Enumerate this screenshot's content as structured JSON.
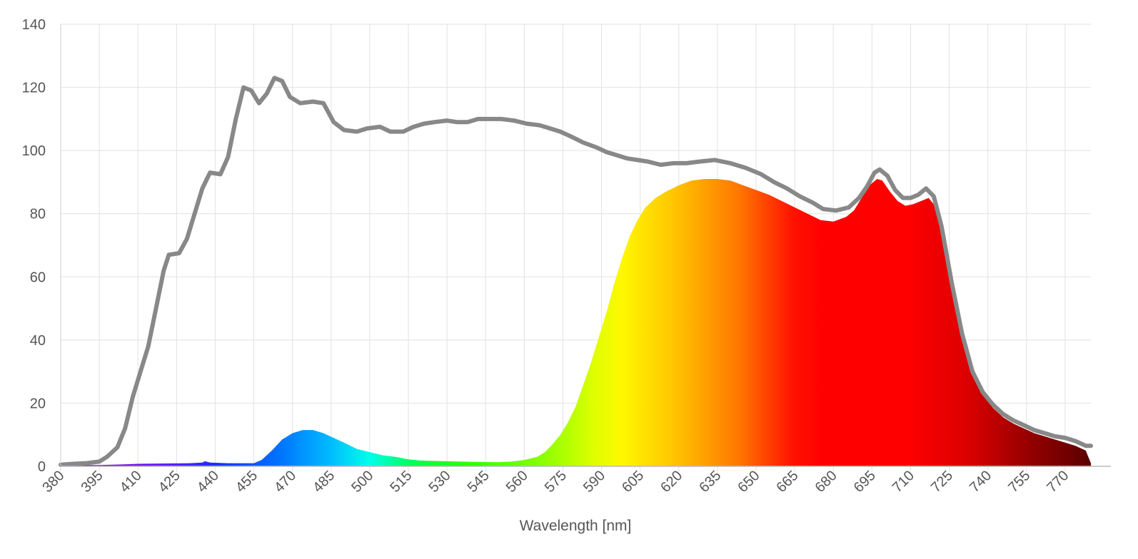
{
  "chart_data": {
    "type": "area",
    "title": "",
    "xlabel": "Wavelength [nm]",
    "ylabel": "",
    "xlim": [
      380,
      780
    ],
    "ylim": [
      0,
      140
    ],
    "grid": true,
    "legend": "none",
    "x_ticks": [
      "380",
      "395",
      "410",
      "425",
      "440",
      "455",
      "470",
      "485",
      "500",
      "515",
      "530",
      "545",
      "560",
      "575",
      "590",
      "605",
      "620",
      "635",
      "650",
      "665",
      "680",
      "695",
      "710",
      "725",
      "740",
      "755",
      "770"
    ],
    "y_ticks": [
      "0",
      "20",
      "40",
      "60",
      "80",
      "100",
      "120",
      "140"
    ],
    "series": [
      {
        "kind": "line",
        "color": "#888888",
        "points": [
          [
            380,
            0.5
          ],
          [
            385,
            0.8
          ],
          [
            390,
            1
          ],
          [
            395,
            1.5
          ],
          [
            398,
            3
          ],
          [
            402,
            6
          ],
          [
            405,
            12
          ],
          [
            408,
            22
          ],
          [
            411,
            30
          ],
          [
            414,
            38
          ],
          [
            417,
            50
          ],
          [
            420,
            62
          ],
          [
            422,
            67
          ],
          [
            426,
            67.5
          ],
          [
            429,
            72
          ],
          [
            432,
            80
          ],
          [
            435,
            88
          ],
          [
            438,
            93
          ],
          [
            442,
            92.5
          ],
          [
            445,
            98
          ],
          [
            448,
            110
          ],
          [
            451,
            120
          ],
          [
            454,
            119
          ],
          [
            457,
            115
          ],
          [
            460,
            118
          ],
          [
            463,
            123
          ],
          [
            466,
            122
          ],
          [
            469,
            117
          ],
          [
            473,
            115
          ],
          [
            478,
            115.5
          ],
          [
            482,
            115
          ],
          [
            486,
            109
          ],
          [
            490,
            106.5
          ],
          [
            495,
            106
          ],
          [
            499,
            107
          ],
          [
            504,
            107.5
          ],
          [
            508,
            106
          ],
          [
            513,
            106
          ],
          [
            517,
            107.5
          ],
          [
            521,
            108.5
          ],
          [
            525,
            109
          ],
          [
            530,
            109.5
          ],
          [
            534,
            109
          ],
          [
            538,
            109
          ],
          [
            542,
            110
          ],
          [
            546,
            110
          ],
          [
            551,
            110
          ],
          [
            556,
            109.5
          ],
          [
            561,
            108.5
          ],
          [
            566,
            108
          ],
          [
            570,
            107
          ],
          [
            574,
            106
          ],
          [
            578,
            104.5
          ],
          [
            583,
            102.5
          ],
          [
            588,
            101
          ],
          [
            592,
            99.5
          ],
          [
            596,
            98.5
          ],
          [
            600,
            97.5
          ],
          [
            604,
            97
          ],
          [
            608,
            96.5
          ],
          [
            613,
            95.5
          ],
          [
            618,
            96
          ],
          [
            623,
            96
          ],
          [
            628,
            96.5
          ],
          [
            634,
            97
          ],
          [
            640,
            96
          ],
          [
            646,
            94.5
          ],
          [
            652,
            92.5
          ],
          [
            657,
            90
          ],
          [
            662,
            88
          ],
          [
            667,
            85.5
          ],
          [
            672,
            83.5
          ],
          [
            676,
            81.5
          ],
          [
            681,
            81
          ],
          [
            686,
            82
          ],
          [
            690,
            85
          ],
          [
            693,
            88.5
          ],
          [
            696,
            93
          ],
          [
            698,
            94
          ],
          [
            701,
            92
          ],
          [
            704,
            87.5
          ],
          [
            707,
            85
          ],
          [
            710,
            85
          ],
          [
            713,
            86
          ],
          [
            716,
            88
          ],
          [
            719,
            85.5
          ],
          [
            722,
            76
          ],
          [
            726,
            58
          ],
          [
            730,
            42
          ],
          [
            734,
            30
          ],
          [
            738,
            23.5
          ],
          [
            742,
            19.5
          ],
          [
            746,
            16.5
          ],
          [
            750,
            14.5
          ],
          [
            754,
            13
          ],
          [
            758,
            11.5
          ],
          [
            762,
            10.5
          ],
          [
            766,
            9.5
          ],
          [
            770,
            9
          ],
          [
            774,
            8
          ],
          [
            778,
            6.5
          ],
          [
            780,
            6.5
          ]
        ]
      },
      {
        "kind": "area",
        "fill": "visible-spectrum-gradient",
        "points": [
          [
            380,
            0.3
          ],
          [
            395,
            0.4
          ],
          [
            405,
            0.6
          ],
          [
            410,
            0.8
          ],
          [
            420,
            0.9
          ],
          [
            430,
            1
          ],
          [
            435,
            1.2
          ],
          [
            436,
            1.6
          ],
          [
            438,
            1.2
          ],
          [
            445,
            1
          ],
          [
            455,
            1
          ],
          [
            458,
            2
          ],
          [
            462,
            5
          ],
          [
            466,
            8.5
          ],
          [
            470,
            10.5
          ],
          [
            474,
            11.5
          ],
          [
            478,
            11.5
          ],
          [
            482,
            10.5
          ],
          [
            486,
            9
          ],
          [
            490,
            7.5
          ],
          [
            495,
            5.5
          ],
          [
            500,
            4.5
          ],
          [
            505,
            3.5
          ],
          [
            510,
            3
          ],
          [
            515,
            2.2
          ],
          [
            520,
            1.8
          ],
          [
            530,
            1.6
          ],
          [
            540,
            1.4
          ],
          [
            550,
            1.3
          ],
          [
            555,
            1.5
          ],
          [
            560,
            2
          ],
          [
            565,
            3
          ],
          [
            568,
            4.5
          ],
          [
            571,
            7
          ],
          [
            574,
            10
          ],
          [
            577,
            14
          ],
          [
            580,
            19
          ],
          [
            583,
            26
          ],
          [
            586,
            33
          ],
          [
            589,
            41
          ],
          [
            592,
            49
          ],
          [
            595,
            58
          ],
          [
            598,
            66
          ],
          [
            601,
            73
          ],
          [
            604,
            78
          ],
          [
            607,
            82
          ],
          [
            611,
            85
          ],
          [
            615,
            87
          ],
          [
            620,
            89
          ],
          [
            625,
            90.5
          ],
          [
            630,
            91
          ],
          [
            635,
            91
          ],
          [
            640,
            90.5
          ],
          [
            645,
            89
          ],
          [
            650,
            87.5
          ],
          [
            655,
            86
          ],
          [
            660,
            84
          ],
          [
            665,
            82
          ],
          [
            670,
            80
          ],
          [
            675,
            78
          ],
          [
            680,
            77.5
          ],
          [
            685,
            79
          ],
          [
            688,
            81
          ],
          [
            691,
            85
          ],
          [
            694,
            89
          ],
          [
            697,
            91
          ],
          [
            699,
            90.5
          ],
          [
            702,
            87
          ],
          [
            705,
            84
          ],
          [
            708,
            82.5
          ],
          [
            711,
            83
          ],
          [
            714,
            84
          ],
          [
            717,
            85
          ],
          [
            719,
            83
          ],
          [
            722,
            74
          ],
          [
            726,
            57
          ],
          [
            730,
            41
          ],
          [
            734,
            29
          ],
          [
            738,
            22.5
          ],
          [
            742,
            18.5
          ],
          [
            746,
            15.5
          ],
          [
            750,
            13.5
          ],
          [
            754,
            12
          ],
          [
            758,
            10.5
          ],
          [
            762,
            9.5
          ],
          [
            766,
            8.5
          ],
          [
            770,
            7.5
          ],
          [
            774,
            6.5
          ],
          [
            778,
            5
          ],
          [
            780,
            1
          ]
        ]
      }
    ]
  }
}
